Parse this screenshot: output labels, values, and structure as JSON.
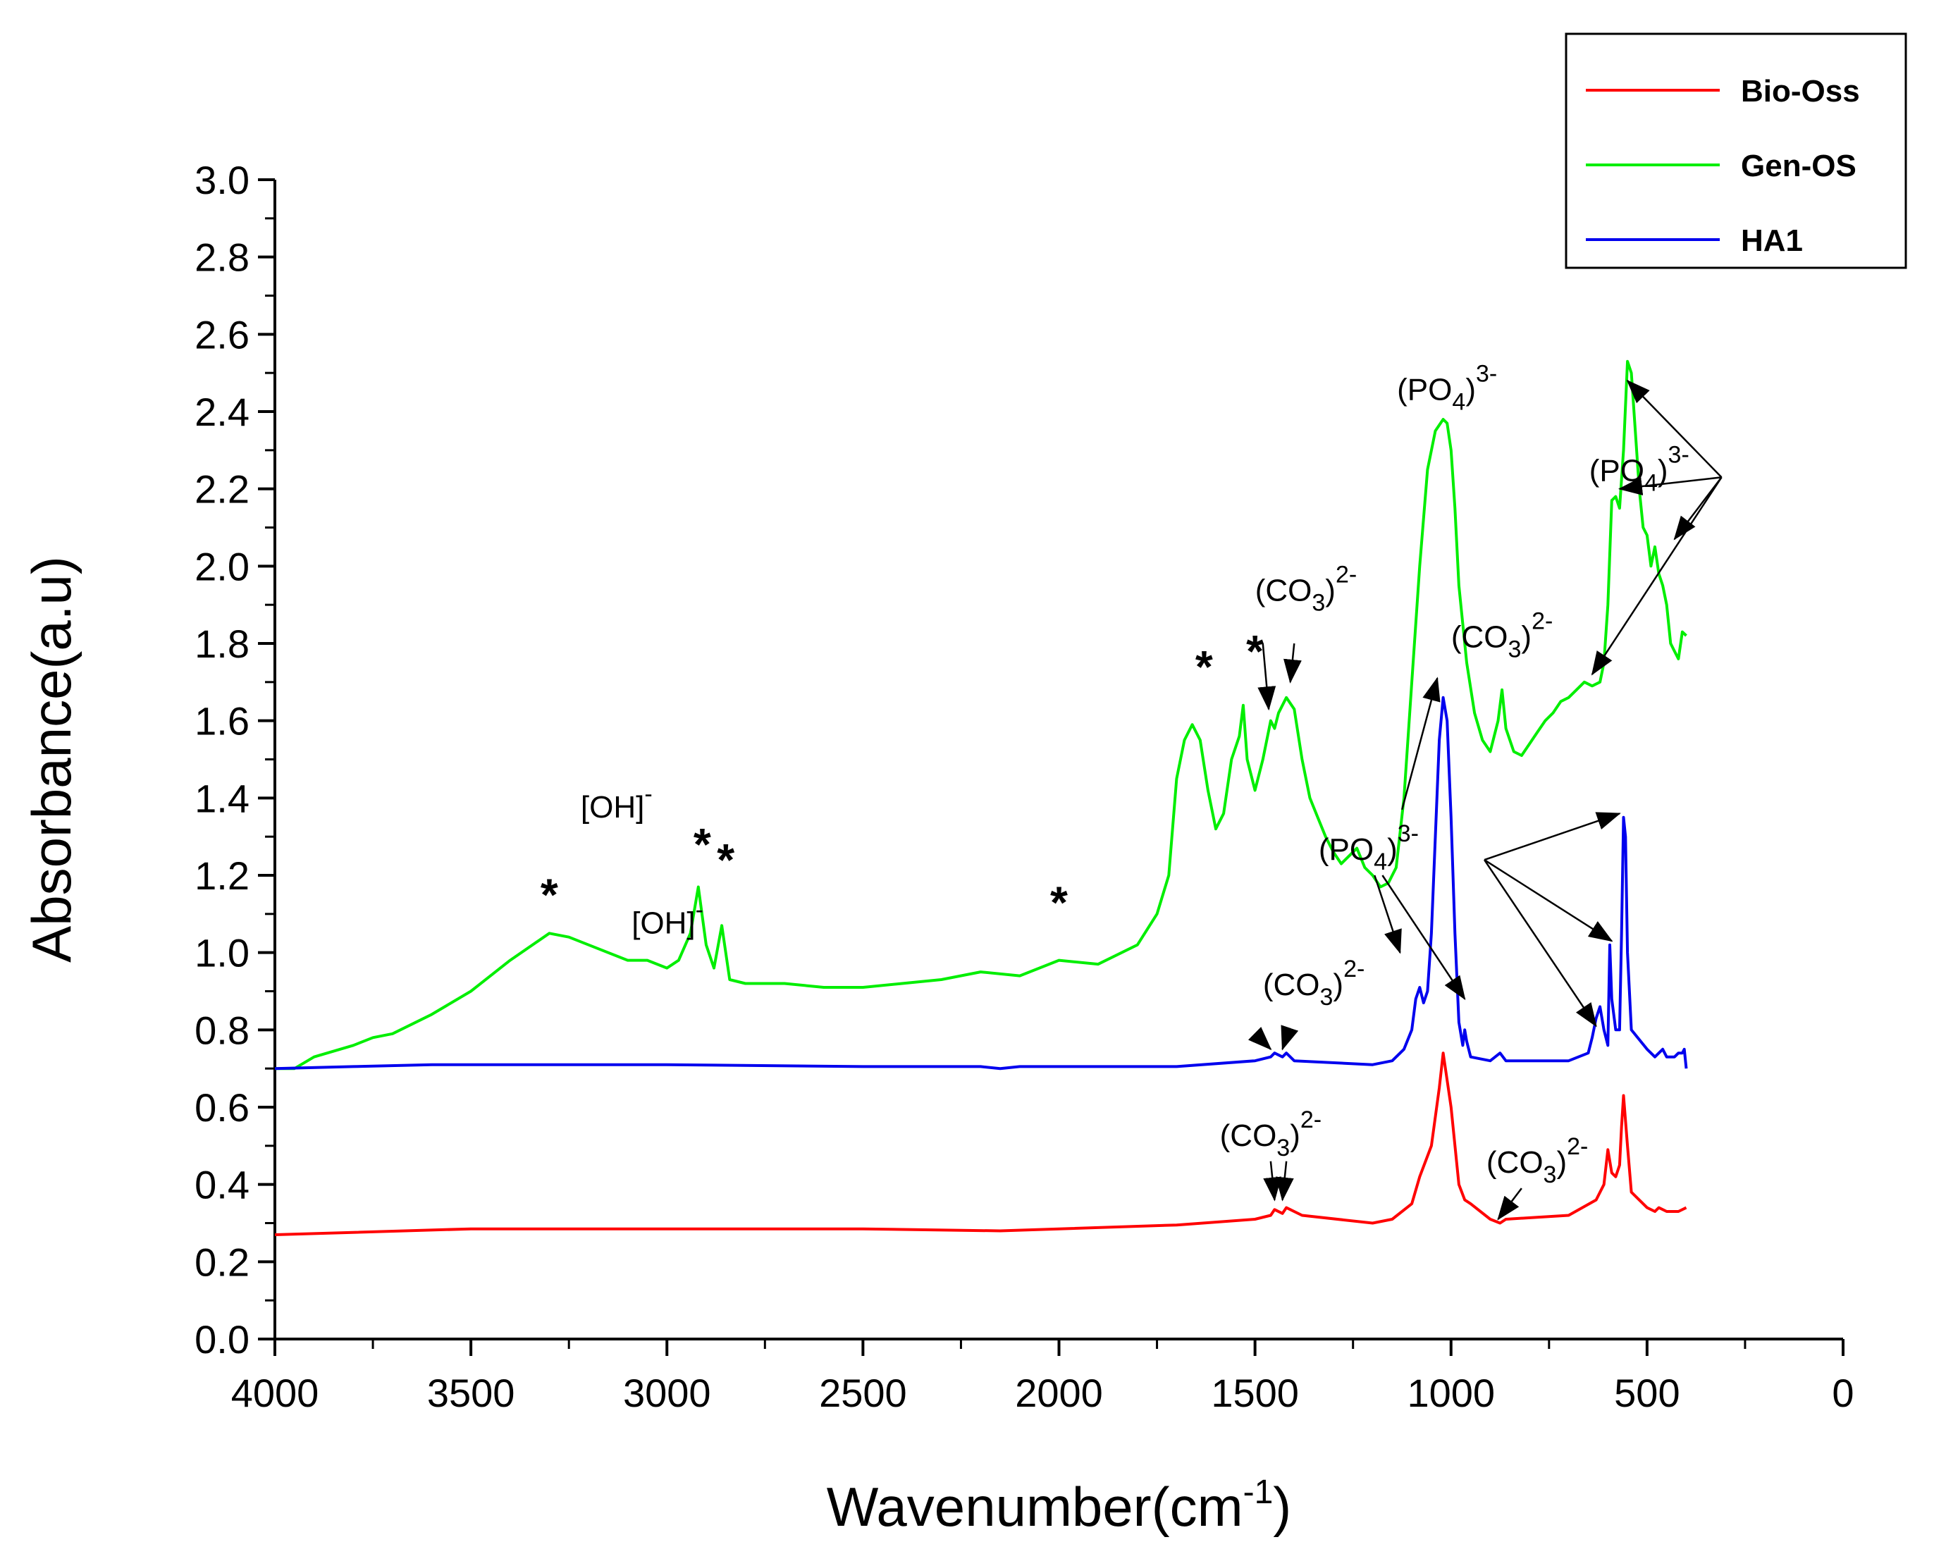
{
  "chart_data": {
    "type": "line",
    "xlabel": "Wavenumber(cm",
    "xlabel_sup": "-1",
    "xlabel_close": ")",
    "ylabel": "Absorbance(a.u)",
    "xlim": [
      4000,
      0
    ],
    "ylim": [
      0.0,
      3.0
    ],
    "xticks": [
      4000,
      3500,
      3000,
      2500,
      2000,
      1500,
      1000,
      500,
      0
    ],
    "xtick_labels": [
      "4000",
      "3500",
      "3000",
      "2500",
      "2000",
      "1500",
      "1000",
      "500",
      "0"
    ],
    "yticks": [
      0.0,
      0.2,
      0.4,
      0.6,
      0.8,
      1.0,
      1.2,
      1.4,
      1.6,
      1.8,
      2.0,
      2.2,
      2.4,
      2.6,
      2.8,
      3.0
    ],
    "ytick_labels": [
      "0.0",
      "0.2",
      "0.4",
      "0.6",
      "0.8",
      "1.0",
      "1.2",
      "1.4",
      "1.6",
      "1.8",
      "2.0",
      "2.2",
      "2.4",
      "2.6",
      "2.8",
      "3.0"
    ],
    "legend_position": "top-right",
    "series": [
      {
        "name": "Bio-Oss",
        "color": "#ff0000",
        "x": [
          4000,
          3500,
          3000,
          2500,
          2150,
          2000,
          1700,
          1500,
          1460,
          1450,
          1430,
          1420,
          1380,
          1200,
          1150,
          1100,
          1080,
          1050,
          1030,
          1020,
          1000,
          980,
          965,
          950,
          900,
          875,
          860,
          700,
          630,
          610,
          600,
          590,
          580,
          570,
          565,
          560,
          550,
          540,
          500,
          480,
          470,
          450,
          420,
          400
        ],
        "y": [
          0.27,
          0.285,
          0.285,
          0.285,
          0.28,
          0.285,
          0.295,
          0.31,
          0.32,
          0.335,
          0.325,
          0.34,
          0.32,
          0.3,
          0.31,
          0.35,
          0.42,
          0.5,
          0.65,
          0.74,
          0.6,
          0.4,
          0.36,
          0.35,
          0.31,
          0.3,
          0.31,
          0.32,
          0.36,
          0.4,
          0.49,
          0.43,
          0.42,
          0.45,
          0.55,
          0.63,
          0.5,
          0.38,
          0.34,
          0.33,
          0.34,
          0.33,
          0.33,
          0.34
        ]
      },
      {
        "name": "Gen-OS",
        "color": "#00ee00",
        "x": [
          4000,
          3950,
          3900,
          3800,
          3750,
          3700,
          3600,
          3500,
          3400,
          3300,
          3250,
          3200,
          3100,
          3050,
          3000,
          2970,
          2940,
          2920,
          2900,
          2880,
          2860,
          2840,
          2800,
          2700,
          2600,
          2500,
          2400,
          2300,
          2200,
          2100,
          2000,
          1900,
          1800,
          1750,
          1720,
          1700,
          1680,
          1660,
          1640,
          1620,
          1600,
          1580,
          1560,
          1540,
          1530,
          1520,
          1500,
          1480,
          1460,
          1450,
          1440,
          1420,
          1400,
          1380,
          1360,
          1340,
          1320,
          1300,
          1280,
          1260,
          1240,
          1220,
          1200,
          1180,
          1160,
          1140,
          1120,
          1100,
          1080,
          1060,
          1040,
          1020,
          1010,
          1000,
          990,
          980,
          960,
          940,
          920,
          900,
          880,
          870,
          860,
          840,
          820,
          800,
          780,
          760,
          740,
          720,
          700,
          680,
          660,
          640,
          620,
          610,
          600,
          590,
          580,
          570,
          560,
          550,
          540,
          530,
          520,
          510,
          500,
          490,
          480,
          470,
          460,
          450,
          440,
          430,
          420,
          410,
          400
        ],
        "y": [
          0.7,
          0.7,
          0.73,
          0.76,
          0.78,
          0.79,
          0.84,
          0.9,
          0.98,
          1.05,
          1.04,
          1.02,
          0.98,
          0.98,
          0.96,
          0.98,
          1.05,
          1.17,
          1.02,
          0.96,
          1.07,
          0.93,
          0.92,
          0.92,
          0.91,
          0.91,
          0.92,
          0.93,
          0.95,
          0.94,
          0.98,
          0.97,
          1.02,
          1.1,
          1.2,
          1.45,
          1.55,
          1.59,
          1.55,
          1.42,
          1.32,
          1.36,
          1.5,
          1.56,
          1.64,
          1.5,
          1.42,
          1.5,
          1.6,
          1.58,
          1.62,
          1.66,
          1.63,
          1.5,
          1.4,
          1.35,
          1.3,
          1.26,
          1.23,
          1.25,
          1.27,
          1.22,
          1.2,
          1.17,
          1.18,
          1.22,
          1.4,
          1.7,
          2.0,
          2.25,
          2.35,
          2.38,
          2.37,
          2.3,
          2.15,
          1.95,
          1.75,
          1.62,
          1.55,
          1.52,
          1.6,
          1.68,
          1.58,
          1.52,
          1.51,
          1.54,
          1.57,
          1.6,
          1.62,
          1.65,
          1.66,
          1.68,
          1.7,
          1.69,
          1.7,
          1.75,
          1.9,
          2.17,
          2.18,
          2.15,
          2.3,
          2.53,
          2.5,
          2.35,
          2.2,
          2.1,
          2.08,
          2.0,
          2.05,
          1.98,
          1.95,
          1.9,
          1.8,
          1.78,
          1.76,
          1.83,
          1.82
        ]
      },
      {
        "name": "HA1",
        "color": "#0000ee",
        "x": [
          4000,
          3800,
          3600,
          3500,
          3000,
          2500,
          2200,
          2150,
          2100,
          2000,
          1700,
          1500,
          1460,
          1450,
          1430,
          1420,
          1400,
          1200,
          1150,
          1120,
          1100,
          1090,
          1080,
          1070,
          1060,
          1050,
          1040,
          1030,
          1020,
          1010,
          1000,
          990,
          980,
          970,
          965,
          960,
          950,
          900,
          875,
          860,
          700,
          650,
          640,
          630,
          620,
          610,
          600,
          595,
          590,
          580,
          570,
          565,
          560,
          555,
          550,
          540,
          500,
          480,
          470,
          460,
          450,
          430,
          420,
          410,
          405,
          400
        ],
        "y": [
          0.7,
          0.705,
          0.71,
          0.71,
          0.71,
          0.705,
          0.705,
          0.7,
          0.705,
          0.705,
          0.705,
          0.72,
          0.73,
          0.74,
          0.73,
          0.74,
          0.72,
          0.71,
          0.72,
          0.75,
          0.8,
          0.88,
          0.91,
          0.87,
          0.9,
          1.05,
          1.3,
          1.55,
          1.66,
          1.6,
          1.35,
          1.05,
          0.82,
          0.76,
          0.8,
          0.77,
          0.73,
          0.72,
          0.74,
          0.72,
          0.72,
          0.74,
          0.78,
          0.83,
          0.86,
          0.8,
          0.76,
          1.02,
          0.88,
          0.8,
          0.8,
          1.05,
          1.35,
          1.3,
          1.0,
          0.8,
          0.75,
          0.73,
          0.74,
          0.75,
          0.73,
          0.73,
          0.74,
          0.74,
          0.75,
          0.7
        ]
      }
    ],
    "annotations": {
      "stars": [
        {
          "x": 3300,
          "y": 1.11,
          "text": "*"
        },
        {
          "x": 2910,
          "y": 1.24,
          "text": "*"
        },
        {
          "x": 2850,
          "y": 1.2,
          "text": "*"
        },
        {
          "x": 2000,
          "y": 1.09,
          "text": "*"
        },
        {
          "x": 1630,
          "y": 1.7,
          "text": "*"
        },
        {
          "x": 1500,
          "y": 1.74,
          "text": "*"
        }
      ],
      "oh_labels": [
        {
          "x": 3220,
          "y": 1.35,
          "base": "[OH]",
          "sup": "-"
        },
        {
          "x": 3090,
          "y": 1.05,
          "base": "[OH]",
          "sup": "-"
        }
      ],
      "ion_labels": [
        {
          "x": 1370,
          "y": 1.91,
          "pre": "(CO",
          "sub": "3",
          "post": ")",
          "sup": "2-"
        },
        {
          "x": 870,
          "y": 1.79,
          "pre": "(CO",
          "sub": "3",
          "post": ")",
          "sup": "2-"
        },
        {
          "x": 1010,
          "y": 2.43,
          "pre": "(PO",
          "sub": "4",
          "post": ")",
          "sup": "3-"
        },
        {
          "x": 520,
          "y": 2.22,
          "pre": "(PO",
          "sub": "4",
          "post": ")",
          "sup": "3-"
        },
        {
          "x": 1210,
          "y": 1.24,
          "pre": "(PO",
          "sub": "4",
          "post": ")",
          "sup": "3-"
        },
        {
          "x": 1350,
          "y": 0.89,
          "pre": "(CO",
          "sub": "3",
          "post": ")",
          "sup": "2-"
        },
        {
          "x": 1460,
          "y": 0.5,
          "pre": "(CO",
          "sub": "3",
          "post": ")",
          "sup": "2-"
        },
        {
          "x": 780,
          "y": 0.43,
          "pre": "(CO",
          "sub": "3",
          "post": ")",
          "sup": "2-"
        }
      ],
      "arrows": [
        {
          "x1": 1480,
          "y1": 1.8,
          "x2": 1465,
          "y2": 1.63
        },
        {
          "x1": 1400,
          "y1": 1.8,
          "x2": 1410,
          "y2": 1.7
        },
        {
          "x1": 1125,
          "y1": 1.37,
          "x2": 1035,
          "y2": 1.71
        },
        {
          "x1": 1195,
          "y1": 1.2,
          "x2": 1130,
          "y2": 1.0
        },
        {
          "x1": 1175,
          "y1": 1.2,
          "x2": 965,
          "y2": 0.88
        },
        {
          "x1": 915,
          "y1": 1.24,
          "x2": 570,
          "y2": 1.36
        },
        {
          "x1": 915,
          "y1": 1.24,
          "x2": 590,
          "y2": 1.03
        },
        {
          "x1": 915,
          "y1": 1.24,
          "x2": 630,
          "y2": 0.81
        },
        {
          "x1": 310,
          "y1": 2.23,
          "x2": 550,
          "y2": 2.48
        },
        {
          "x1": 310,
          "y1": 2.23,
          "x2": 570,
          "y2": 2.2
        },
        {
          "x1": 310,
          "y1": 2.23,
          "x2": 430,
          "y2": 2.07
        },
        {
          "x1": 310,
          "y1": 2.23,
          "x2": 640,
          "y2": 1.72
        },
        {
          "x1": 1490,
          "y1": 0.78,
          "x2": 1460,
          "y2": 0.75
        },
        {
          "x1": 1420,
          "y1": 0.78,
          "x2": 1430,
          "y2": 0.75
        },
        {
          "x1": 1460,
          "y1": 0.46,
          "x2": 1450,
          "y2": 0.36
        },
        {
          "x1": 1420,
          "y1": 0.46,
          "x2": 1430,
          "y2": 0.36
        },
        {
          "x1": 820,
          "y1": 0.39,
          "x2": 880,
          "y2": 0.31
        }
      ]
    }
  }
}
